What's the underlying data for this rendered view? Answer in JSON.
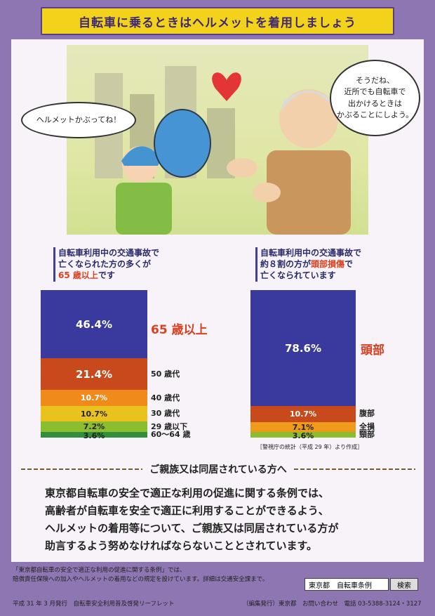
{
  "title": "自転車に乗るときはヘルメットを着用しましょう",
  "bubbles": {
    "girl": "ヘルメットかぶってね！",
    "man_l1": "そうだね、",
    "man_l2": "近所でも自転車で",
    "man_l3": "出かけるときは",
    "man_l4": "かぶることにしよう。"
  },
  "left_chart": {
    "head_l1": "自転車利用中の交通事故で",
    "head_l2": "亡くなられた方の多くが",
    "head_l3_red": "65 歳以上",
    "head_l3_rest": "です",
    "callout": "65 歳以上"
  },
  "right_chart": {
    "head_l1": "自転車利用中の交通事故で",
    "head_l2_a": "約８割の方が",
    "head_l2_red": "頭部損傷",
    "head_l2_b": "で",
    "head_l3": "亡くなられています",
    "callout": "頭部",
    "source": "［警視庁の統計（平成 29 年）より作成］"
  },
  "chart_data": [
    {
      "type": "bar",
      "stacked": true,
      "unit": "%",
      "segments": [
        {
          "label": "60～64 歳",
          "value": 3.6,
          "display": "3.6%",
          "color": "#2f8f3a"
        },
        {
          "label": "29 歳以下",
          "value": 7.2,
          "display": "7.2%",
          "color": "#8cbd2e"
        },
        {
          "label": "30 歳代",
          "value": 10.7,
          "display": "10.7%",
          "color": "#e9c21e"
        },
        {
          "label": "40 歳代",
          "value": 10.7,
          "display": "10.7%",
          "color": "#ef8a1b"
        },
        {
          "label": "50 歳代",
          "value": 21.4,
          "display": "21.4%",
          "color": "#c84a1c"
        },
        {
          "label": "",
          "value": 46.4,
          "display": "46.4%",
          "color": "#3a3a9e"
        }
      ]
    },
    {
      "type": "bar",
      "stacked": true,
      "unit": "%",
      "segments": [
        {
          "label": "頸部",
          "value": 3.6,
          "display": "3.6%",
          "color": "#8cbd2e"
        },
        {
          "label": "全損",
          "value": 7.1,
          "display": "7.1%",
          "color": "#ef9a1b"
        },
        {
          "label": "腹部",
          "value": 10.7,
          "display": "10.7%",
          "color": "#c84a1c"
        },
        {
          "label": "",
          "value": 78.6,
          "display": "78.6%",
          "color": "#3a3a9e"
        }
      ]
    }
  ],
  "section_title": "ご親族又は同居されている方へ",
  "body": {
    "l1": "東京都自転車の安全で適正な利用の促進に関する条例では、",
    "l2": "高齢者が自転車を安全で適正に利用することができるよう、",
    "l3": "ヘルメットの着用等について、ご親族又は同居されている方が",
    "l4": "助言するよう努めなければならないこととされています。"
  },
  "footer": {
    "note_l1": "「東京都自転車の安全で適正な利用の促進に関する条例」では、",
    "note_l2": "賠償責任保険への加入やヘルメットの着用などの規定を設けています。詳細は交通安全課まで。",
    "search_value": "東京都　自転車条例",
    "search_button": "検索",
    "issued": "平成 31 年 3 月発行　自転車安全利用普及啓発リーフレット",
    "publisher": "（編集発行）東京都　お問い合わせ　電話 03-5388-3124・3127"
  }
}
